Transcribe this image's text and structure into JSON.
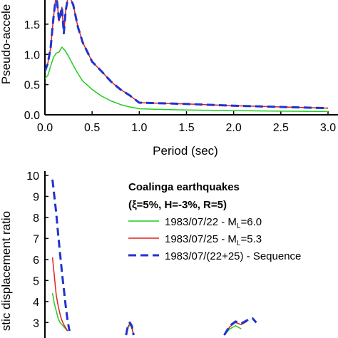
{
  "chart_data": [
    {
      "type": "line",
      "title": "",
      "xlabel": "Period (sec)",
      "ylabel": "Pseudo-accele",
      "xlim": [
        0,
        3.0
      ],
      "ylim": [
        0,
        1.9
      ],
      "x_ticks": [
        0.0,
        0.5,
        1.0,
        1.5,
        2.0,
        2.5,
        3.0
      ],
      "x_tick_labels": [
        "0.0",
        "0.5",
        "1.0",
        "1.5",
        "2.0",
        "2.5",
        "3.0"
      ],
      "y_ticks": [
        0.0,
        0.5,
        1.0,
        1.5
      ],
      "y_tick_labels": [
        "0.0",
        "0.5",
        "1.0",
        "1.5"
      ],
      "grid": false,
      "series": [
        {
          "color": "#22cc22",
          "style": "solid",
          "x": [
            0.0,
            0.03,
            0.06,
            0.09,
            0.12,
            0.15,
            0.18,
            0.21,
            0.25,
            0.3,
            0.35,
            0.4,
            0.5,
            0.6,
            0.7,
            0.8,
            0.9,
            1.0,
            1.2,
            1.5,
            2.0,
            2.5,
            3.0
          ],
          "y": [
            0.6,
            0.65,
            0.8,
            0.95,
            1.02,
            1.04,
            1.12,
            1.07,
            0.97,
            0.82,
            0.68,
            0.56,
            0.42,
            0.31,
            0.23,
            0.17,
            0.13,
            0.1,
            0.09,
            0.08,
            0.07,
            0.06,
            0.055
          ]
        },
        {
          "color": "#dd2222",
          "style": "solid",
          "x": [
            0.0,
            0.03,
            0.06,
            0.09,
            0.12,
            0.15,
            0.18,
            0.2,
            0.22,
            0.25,
            0.3,
            0.35,
            0.4,
            0.5,
            0.6,
            0.7,
            0.8,
            0.9,
            1.0,
            1.5,
            2.0,
            2.5,
            3.0
          ],
          "y": [
            0.72,
            0.85,
            1.1,
            1.6,
            2.0,
            1.55,
            1.78,
            1.35,
            1.72,
            2.0,
            1.82,
            1.45,
            1.2,
            0.88,
            0.72,
            0.55,
            0.42,
            0.32,
            0.2,
            0.18,
            0.15,
            0.13,
            0.11
          ]
        },
        {
          "color": "#2233cc",
          "style": "dashed",
          "x": [
            0.0,
            0.03,
            0.06,
            0.09,
            0.12,
            0.15,
            0.18,
            0.2,
            0.22,
            0.25,
            0.3,
            0.35,
            0.4,
            0.5,
            0.6,
            0.7,
            0.8,
            0.9,
            1.0,
            1.5,
            2.0,
            2.5,
            3.0
          ],
          "y": [
            0.72,
            0.85,
            1.1,
            1.6,
            2.0,
            1.55,
            1.78,
            1.35,
            1.72,
            2.0,
            1.82,
            1.45,
            1.2,
            0.88,
            0.72,
            0.55,
            0.42,
            0.32,
            0.2,
            0.18,
            0.15,
            0.13,
            0.11
          ]
        }
      ]
    },
    {
      "type": "line",
      "title": "Coalinga earthquakes",
      "subtitle": "(ξ=5%, H=-3%, R=5)",
      "xlabel": "",
      "ylabel": "stic displacement ratio",
      "xlim": [
        0,
        3.0
      ],
      "ylim": [
        2.4,
        10
      ],
      "y_ticks": [
        3,
        4,
        5,
        6,
        7,
        8,
        9,
        10
      ],
      "y_tick_labels": [
        "3",
        "4",
        "5",
        "6",
        "7",
        "8",
        "9",
        "10"
      ],
      "grid": false,
      "legend_position": "top-right",
      "series": [
        {
          "name": "1983/07/22 - ML=6.0",
          "legend_main": "1983/07/22 - M",
          "legend_sub": "L",
          "legend_tail": "=6.0",
          "color": "#22cc22",
          "style": "solid",
          "x": [
            0.08,
            0.1,
            0.12,
            0.14,
            0.16,
            0.18,
            0.2,
            0.22,
            0.24
          ],
          "y": [
            4.4,
            3.9,
            3.55,
            3.2,
            3.0,
            2.9,
            2.8,
            2.7,
            2.6
          ]
        },
        {
          "name": "1983/07/25 - ML=5.3",
          "legend_main": "1983/07/25 - M",
          "legend_sub": "L",
          "legend_tail": "=5.3",
          "color": "#dd2222",
          "style": "solid",
          "x": [
            0.08,
            0.1,
            0.12,
            0.14,
            0.16,
            0.18,
            0.2,
            0.22,
            0.24
          ],
          "y": [
            6.1,
            5.2,
            4.3,
            3.8,
            3.4,
            3.1,
            2.9,
            2.75,
            2.6
          ]
        },
        {
          "name": "1983/07/(22+25) - Sequence",
          "legend_main": "1983/07/(22+25) - Sequence",
          "legend_sub": "",
          "legend_tail": "",
          "color": "#2233cc",
          "style": "dashed",
          "x": [
            0.08,
            0.1,
            0.12,
            0.14,
            0.16,
            0.18,
            0.2,
            0.22,
            0.24,
            0.26
          ],
          "y": [
            9.8,
            9.0,
            8.2,
            7.2,
            6.3,
            5.4,
            4.6,
            3.8,
            3.1,
            2.6
          ]
        }
      ],
      "extra_traces": [
        {
          "color": "#22cc22",
          "style": "solid",
          "x": [
            0.86,
            0.88,
            0.9,
            0.92,
            0.94
          ],
          "y": [
            2.4,
            2.75,
            2.9,
            2.75,
            2.4
          ]
        },
        {
          "color": "#dd2222",
          "style": "solid",
          "x": [
            0.86,
            0.88,
            0.9,
            0.92,
            0.94
          ],
          "y": [
            2.4,
            2.8,
            2.95,
            2.8,
            2.4
          ]
        },
        {
          "color": "#2233cc",
          "style": "dashed",
          "x": [
            0.86,
            0.88,
            0.9,
            0.92,
            0.94
          ],
          "y": [
            2.4,
            2.85,
            3.0,
            2.85,
            2.4
          ]
        },
        {
          "color": "#22cc22",
          "style": "solid",
          "x": [
            1.9,
            1.96,
            2.02,
            2.08
          ],
          "y": [
            2.4,
            2.7,
            2.85,
            2.7
          ]
        },
        {
          "color": "#dd2222",
          "style": "solid",
          "x": [
            1.9,
            1.96,
            2.02,
            2.08,
            2.14
          ],
          "y": [
            2.4,
            2.8,
            3.0,
            2.9,
            3.05
          ]
        },
        {
          "color": "#2233cc",
          "style": "dashed",
          "x": [
            1.9,
            1.96,
            2.02,
            2.08,
            2.14,
            2.2,
            2.24
          ],
          "y": [
            2.4,
            2.85,
            3.05,
            2.95,
            3.1,
            3.2,
            3.0
          ]
        }
      ]
    }
  ]
}
